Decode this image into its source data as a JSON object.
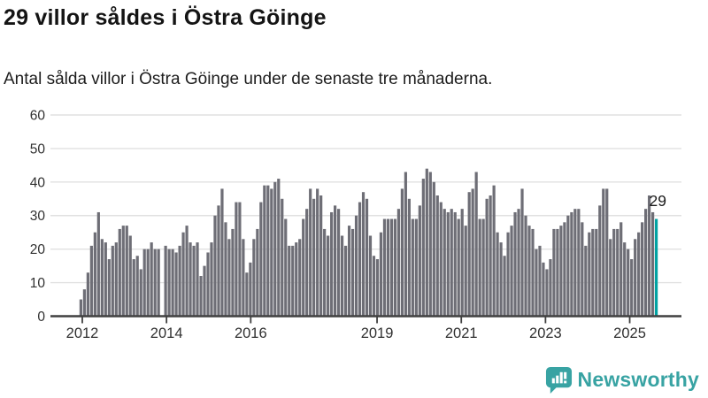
{
  "header": {
    "title": "29 villor såldes i Östra Göinge",
    "subtitle": "Antal sålda villor i Östra Göinge under de senaste tre månaderna."
  },
  "footer": {
    "brand": "Newsworthy",
    "brand_color": "#38a3a3"
  },
  "chart_data": {
    "type": "bar",
    "title": "29 villor såldes i Östra Göinge",
    "subtitle": "Antal sålda villor i Östra Göinge under de senaste tre månaderna.",
    "x_start": "2012-01",
    "x_interval": "month",
    "x_tick_labels": [
      "2012",
      "2014",
      "2016",
      "2019",
      "2021",
      "2023",
      "2025"
    ],
    "x_tick_years": [
      2012,
      2014,
      2016,
      2019,
      2021,
      2023,
      2025
    ],
    "y_ticks": [
      0,
      10,
      20,
      30,
      40,
      50,
      60
    ],
    "ylim": [
      0,
      60
    ],
    "grid": "horizontal",
    "legend": "none",
    "bar_color": "#6e6e76",
    "highlight_color": "#00a2a2",
    "highlight_index": 163,
    "highlight_label": "29",
    "values": [
      5,
      8,
      13,
      21,
      25,
      31,
      23,
      22,
      17,
      21,
      22,
      26,
      27,
      27,
      24,
      17,
      18,
      14,
      20,
      20,
      22,
      20,
      20,
      null,
      21,
      20,
      20,
      19,
      21,
      25,
      27,
      22,
      21,
      22,
      12,
      15,
      19,
      22,
      30,
      33,
      38,
      28,
      23,
      26,
      34,
      34,
      23,
      13,
      16,
      23,
      26,
      34,
      39,
      39,
      38,
      40,
      41,
      35,
      29,
      21,
      21,
      22,
      23,
      29,
      32,
      38,
      35,
      38,
      36,
      26,
      24,
      31,
      33,
      32,
      24,
      21,
      27,
      26,
      30,
      34,
      37,
      35,
      24,
      18,
      17,
      25,
      29,
      29,
      29,
      29,
      32,
      38,
      43,
      35,
      29,
      29,
      33,
      41,
      44,
      43,
      40,
      36,
      34,
      32,
      31,
      32,
      31,
      29,
      32,
      27,
      37,
      38,
      43,
      29,
      29,
      35,
      36,
      39,
      25,
      22,
      18,
      25,
      27,
      31,
      32,
      38,
      30,
      27,
      26,
      20,
      21,
      16,
      14,
      17,
      26,
      26,
      27,
      28,
      30,
      31,
      32,
      32,
      28,
      21,
      25,
      26,
      26,
      33,
      38,
      38,
      23,
      26,
      26,
      28,
      22,
      20,
      17,
      23,
      25,
      28,
      32,
      36,
      31,
      29
    ]
  }
}
